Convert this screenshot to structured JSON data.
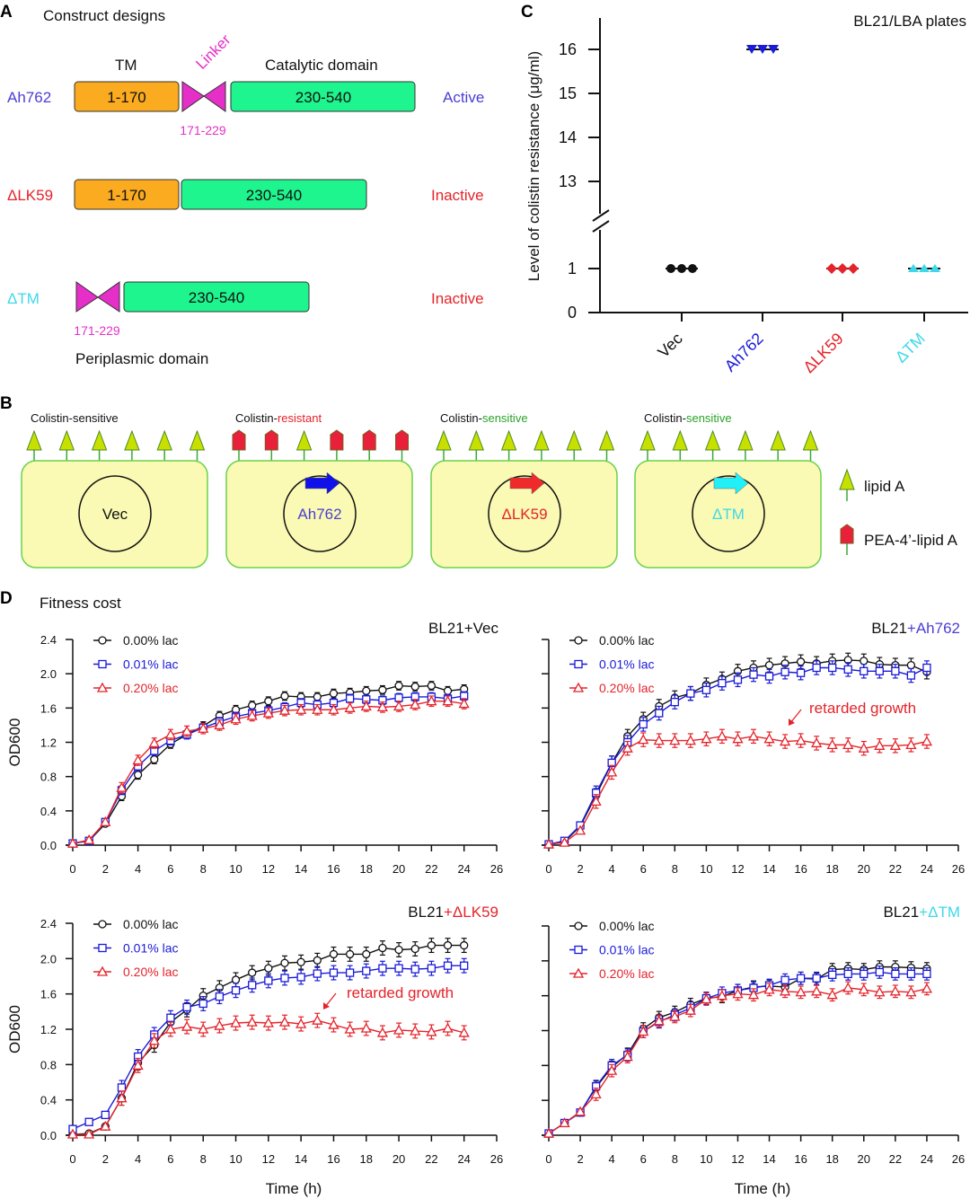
{
  "colors": {
    "black": "#111111",
    "blue": "#1a1ad8",
    "red": "#e5232a",
    "cyan": "#3ed8ea",
    "ah762": "#4a3fd4",
    "green_text": "#2aa32a",
    "tm_box": "#fbab1f",
    "cat_box": "#1ef58e",
    "linker": "#e52fc8",
    "cell_fill": "#fafab4",
    "cell_stroke": "#6ad24a",
    "lipidA": "#c8e000"
  },
  "panelA": {
    "letter": "A",
    "title": "Construct designs",
    "tm_label": "TM",
    "linker_label": "Linker",
    "catalytic_label": "Catalytic domain",
    "periplasmic_label": "Periplasmic domain",
    "rows": [
      {
        "name": "Ah762",
        "tm": "1-170",
        "linker": "171-229",
        "cat": "230-540",
        "status": "Active"
      },
      {
        "name": "ΔLK59",
        "tm": "1-170",
        "cat": "230-540",
        "status": "Inactive"
      },
      {
        "name": "ΔTM",
        "linker": "171-229",
        "cat": "230-540",
        "status": "Inactive"
      }
    ]
  },
  "panelB": {
    "letter": "B",
    "cells": [
      {
        "prefix": "Colistin-",
        "suffix": "sensitive",
        "plasmid": "Vec",
        "lipids": [
          "A",
          "A",
          "A",
          "A",
          "A",
          "A"
        ]
      },
      {
        "prefix": "Colistin-",
        "suffix": "resistant",
        "plasmid": "Ah762",
        "lipids": [
          "P",
          "P",
          "A",
          "P",
          "P",
          "P"
        ]
      },
      {
        "prefix": "Colistin-",
        "suffix": "sensitive",
        "plasmid": "ΔLK59",
        "lipids": [
          "A",
          "A",
          "A",
          "A",
          "A",
          "A"
        ]
      },
      {
        "prefix": "Colistin-",
        "suffix": "sensitive",
        "plasmid": "ΔTM",
        "lipids": [
          "A",
          "A",
          "A",
          "A",
          "A",
          "A"
        ]
      }
    ],
    "legend": [
      {
        "icon": "triangle-lipid-icon",
        "label": "lipid A"
      },
      {
        "icon": "pentagon-lipid-icon",
        "label": "PEA-4’-lipid A"
      }
    ]
  },
  "panelC_letter": "C",
  "panelD": {
    "letter": "D",
    "title": "Fitness cost"
  },
  "chart_data": [
    {
      "type": "scatter",
      "panel": "C",
      "annotation": "BL21/LBA plates",
      "ylabel": "Level of colistin resistance (μg/ml)",
      "categories": [
        "Vec",
        "Ah762",
        "ΔLK59",
        "ΔTM"
      ],
      "category_colors": [
        "#111111",
        "#1a1ad8",
        "#e5232a",
        "#3ed8ea"
      ],
      "markers": [
        "circle",
        "triangle-down",
        "diamond",
        "triangle-up"
      ],
      "values": [
        [
          1,
          1,
          1
        ],
        [
          16,
          16,
          16
        ],
        [
          1,
          1,
          1
        ],
        [
          1,
          1,
          1
        ]
      ],
      "y_axis_break": true,
      "yticks_lower": [
        0,
        1
      ],
      "yticks_upper": [
        13,
        14,
        15,
        16
      ],
      "ylim_lower": [
        0,
        1
      ],
      "ylim_upper": [
        13,
        16
      ]
    },
    {
      "type": "line",
      "panel": "D",
      "title_prefix": "BL21",
      "title_suffix": "+Vec",
      "title_suffix_color": "#111111",
      "ylabel": "OD600",
      "xlabel": "",
      "xlim": [
        0,
        26
      ],
      "ylim": [
        0,
        2.4
      ],
      "xticks": [
        0,
        2,
        4,
        6,
        8,
        10,
        12,
        14,
        16,
        18,
        20,
        22,
        24,
        26
      ],
      "yticks": [
        "0.0",
        "0.4",
        "0.8",
        "1.2",
        "1.6",
        "2.0",
        "2.4"
      ],
      "x": [
        0,
        1,
        2,
        3,
        4,
        5,
        6,
        7,
        8,
        9,
        10,
        11,
        12,
        13,
        14,
        15,
        16,
        17,
        18,
        19,
        20,
        21,
        22,
        23,
        24
      ],
      "series": [
        {
          "name": "0.00% lac",
          "color": "#111111",
          "marker": "circle",
          "sem": 0.05,
          "values": [
            0.02,
            0.05,
            0.25,
            0.57,
            0.82,
            1.0,
            1.18,
            1.29,
            1.39,
            1.51,
            1.58,
            1.63,
            1.68,
            1.74,
            1.73,
            1.73,
            1.77,
            1.78,
            1.8,
            1.81,
            1.86,
            1.85,
            1.86,
            1.8,
            1.82
          ]
        },
        {
          "name": "0.01% lac",
          "color": "#1a1ad8",
          "marker": "square",
          "sem": 0.05,
          "values": [
            0.02,
            0.05,
            0.27,
            0.64,
            0.92,
            1.1,
            1.22,
            1.29,
            1.37,
            1.44,
            1.5,
            1.54,
            1.57,
            1.61,
            1.66,
            1.64,
            1.66,
            1.71,
            1.7,
            1.69,
            1.72,
            1.73,
            1.73,
            1.71,
            1.74
          ]
        },
        {
          "name": "0.20% lac",
          "color": "#e5232a",
          "marker": "triangle",
          "sem": 0.06,
          "values": [
            0.02,
            0.06,
            0.27,
            0.67,
            0.99,
            1.19,
            1.29,
            1.33,
            1.36,
            1.4,
            1.47,
            1.51,
            1.54,
            1.57,
            1.58,
            1.58,
            1.58,
            1.6,
            1.62,
            1.61,
            1.62,
            1.64,
            1.68,
            1.68,
            1.65
          ]
        }
      ]
    },
    {
      "type": "line",
      "panel": "D",
      "title_prefix": "BL21",
      "title_suffix": "+Ah762",
      "title_suffix_color": "#4a3fd4",
      "ylabel": "",
      "xlabel": "",
      "xlim": [
        0,
        26
      ],
      "ylim": [
        0,
        2.4
      ],
      "xticks": [
        0,
        2,
        4,
        6,
        8,
        10,
        12,
        14,
        16,
        18,
        20,
        22,
        24,
        26
      ],
      "yticks": [],
      "annotation": "retarded growth",
      "x": [
        0,
        1,
        2,
        3,
        4,
        5,
        6,
        7,
        8,
        9,
        10,
        11,
        12,
        13,
        14,
        15,
        16,
        17,
        18,
        19,
        20,
        21,
        22,
        23,
        24
      ],
      "series": [
        {
          "name": "0.00% lac",
          "color": "#111111",
          "marker": "circle",
          "sem": 0.08,
          "values": [
            0.01,
            0.04,
            0.22,
            0.58,
            0.96,
            1.27,
            1.47,
            1.62,
            1.72,
            1.77,
            1.87,
            1.94,
            2.03,
            2.07,
            2.1,
            2.12,
            2.14,
            2.12,
            2.15,
            2.16,
            2.15,
            2.11,
            2.1,
            2.1,
            2.02
          ]
        },
        {
          "name": "0.01% lac",
          "color": "#1a1ad8",
          "marker": "square",
          "sem": 0.08,
          "values": [
            0.01,
            0.05,
            0.23,
            0.61,
            0.96,
            1.2,
            1.41,
            1.54,
            1.67,
            1.77,
            1.81,
            1.89,
            1.93,
            1.99,
            1.97,
            2.02,
            2.01,
            2.07,
            2.07,
            2.05,
            2.03,
            2.03,
            2.03,
            1.98,
            2.07
          ]
        },
        {
          "name": "0.20% lac",
          "color": "#e5232a",
          "marker": "triangle",
          "sem": 0.08,
          "values": [
            0.01,
            0.03,
            0.17,
            0.51,
            0.85,
            1.13,
            1.23,
            1.22,
            1.22,
            1.22,
            1.24,
            1.27,
            1.24,
            1.27,
            1.24,
            1.21,
            1.22,
            1.19,
            1.17,
            1.17,
            1.13,
            1.16,
            1.16,
            1.17,
            1.21
          ]
        }
      ]
    },
    {
      "type": "line",
      "panel": "D",
      "title_prefix": "BL21",
      "title_suffix": "+ΔLK59",
      "title_suffix_color": "#e5232a",
      "ylabel": "OD600",
      "xlabel": "Time (h)",
      "xlim": [
        0,
        26
      ],
      "ylim": [
        0,
        2.4
      ],
      "xticks": [
        0,
        2,
        4,
        6,
        8,
        10,
        12,
        14,
        16,
        18,
        20,
        22,
        24,
        26
      ],
      "yticks": [
        "0.0",
        "0.4",
        "0.8",
        "1.2",
        "1.6",
        "2.0",
        "2.4"
      ],
      "annotation": "retarded growth",
      "x": [
        0,
        1,
        2,
        3,
        4,
        5,
        6,
        7,
        8,
        9,
        10,
        11,
        12,
        13,
        14,
        15,
        16,
        17,
        18,
        19,
        20,
        21,
        22,
        23,
        24
      ],
      "series": [
        {
          "name": "0.00% lac",
          "color": "#111111",
          "marker": "circle",
          "sem": 0.08,
          "values": [
            0.01,
            0.02,
            0.1,
            0.42,
            0.82,
            1.02,
            1.28,
            1.42,
            1.58,
            1.67,
            1.76,
            1.84,
            1.89,
            1.95,
            1.96,
            1.98,
            2.05,
            2.05,
            2.05,
            2.12,
            2.1,
            2.11,
            2.15,
            2.15,
            2.15
          ]
        },
        {
          "name": "0.01% lac",
          "color": "#1a1ad8",
          "marker": "square",
          "sem": 0.08,
          "values": [
            0.07,
            0.15,
            0.23,
            0.54,
            0.89,
            1.14,
            1.33,
            1.45,
            1.49,
            1.57,
            1.64,
            1.7,
            1.75,
            1.78,
            1.79,
            1.83,
            1.84,
            1.84,
            1.86,
            1.89,
            1.89,
            1.88,
            1.89,
            1.92,
            1.92
          ]
        },
        {
          "name": "0.20% lac",
          "color": "#e5232a",
          "marker": "triangle",
          "sem": 0.08,
          "values": [
            0.01,
            0.01,
            0.1,
            0.42,
            0.79,
            1.07,
            1.2,
            1.23,
            1.2,
            1.24,
            1.27,
            1.28,
            1.27,
            1.28,
            1.26,
            1.3,
            1.25,
            1.2,
            1.21,
            1.16,
            1.19,
            1.18,
            1.17,
            1.21,
            1.16
          ]
        }
      ]
    },
    {
      "type": "line",
      "panel": "D",
      "title_prefix": "BL21",
      "title_suffix": "+ΔTM",
      "title_suffix_color": "#3ed8ea",
      "ylabel": "",
      "xlabel": "Time (h)",
      "xlim": [
        0,
        26
      ],
      "ylim": [
        0,
        2.4
      ],
      "xticks": [
        0,
        2,
        4,
        6,
        8,
        10,
        12,
        14,
        16,
        18,
        20,
        22,
        24,
        26
      ],
      "yticks": [],
      "x": [
        0,
        1,
        2,
        3,
        4,
        5,
        6,
        7,
        8,
        9,
        10,
        11,
        12,
        13,
        14,
        15,
        16,
        17,
        18,
        19,
        20,
        21,
        22,
        23,
        24
      ],
      "series": [
        {
          "name": "0.00% lac",
          "color": "#111111",
          "marker": "circle",
          "sem": 0.07,
          "values": [
            0.02,
            0.14,
            0.26,
            0.55,
            0.78,
            0.93,
            1.22,
            1.35,
            1.41,
            1.5,
            1.57,
            1.59,
            1.66,
            1.7,
            1.71,
            1.7,
            1.8,
            1.79,
            1.9,
            1.91,
            1.9,
            1.93,
            1.93,
            1.92,
            1.91
          ]
        },
        {
          "name": "0.01% lac",
          "color": "#1a1ad8",
          "marker": "square",
          "sem": 0.07,
          "values": [
            0.02,
            0.14,
            0.26,
            0.56,
            0.8,
            0.92,
            1.19,
            1.3,
            1.38,
            1.46,
            1.57,
            1.63,
            1.66,
            1.69,
            1.72,
            1.78,
            1.8,
            1.8,
            1.84,
            1.85,
            1.85,
            1.87,
            1.85,
            1.85,
            1.85
          ]
        },
        {
          "name": "0.20% lac",
          "color": "#e5232a",
          "marker": "triangle",
          "sem": 0.07,
          "values": [
            0.02,
            0.14,
            0.27,
            0.47,
            0.74,
            0.9,
            1.19,
            1.31,
            1.36,
            1.43,
            1.56,
            1.6,
            1.62,
            1.61,
            1.67,
            1.65,
            1.64,
            1.65,
            1.61,
            1.69,
            1.67,
            1.64,
            1.65,
            1.64,
            1.68
          ]
        }
      ]
    }
  ]
}
